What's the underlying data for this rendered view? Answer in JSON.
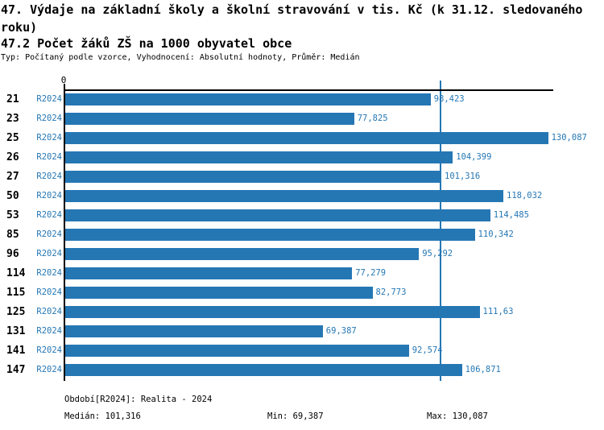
{
  "header": {
    "title_line1": "47. Výdaje na základní školy a školní stravování v tis. Kč (k 31.12. sledovaného",
    "title_line2": "roku)",
    "title_line3": "47.2 Počet žáků ZŠ na 1000 obyvatel obce",
    "subtitle": "Typ: Počítaný podle vzorce, Vyhodnocení: Absolutní hodnoty, Průměr: Medián"
  },
  "chart_data": {
    "type": "bar",
    "orientation": "horizontal",
    "title": "47. Výdaje na základní školy a školní stravování v tis. Kč (k 31.12. sledovaného roku) / 47.2 Počet žáků ZŠ na 1000 obyvatel obce",
    "xlabel": "",
    "ylabel": "",
    "axis_zero_label": "0",
    "xlim": [
      0,
      140
    ],
    "grid": false,
    "series_label": "R2024",
    "categories": [
      "21",
      "23",
      "25",
      "26",
      "27",
      "50",
      "53",
      "85",
      "96",
      "114",
      "115",
      "125",
      "131",
      "141",
      "147"
    ],
    "values": [
      98.423,
      77.825,
      130.087,
      104.399,
      101.316,
      118.032,
      114.485,
      110.342,
      95.292,
      77.279,
      82.773,
      111.63,
      69.387,
      92.574,
      106.871
    ],
    "value_labels": [
      "98,423",
      "77,825",
      "130,087",
      "104,399",
      "101,316",
      "118,032",
      "114,485",
      "110,342",
      "95,292",
      "77,279",
      "82,773",
      "111,63",
      "69,387",
      "92,574",
      "106,871"
    ],
    "median": 101.316,
    "min": 69.387,
    "max": 130.087,
    "bar_color": "#2577B4",
    "median_line_color": "#2577B4",
    "label_color": "#2577B4",
    "axis_color": "#000000"
  },
  "footer": {
    "period": "Období[R2024]: Realita - 2024",
    "median": "Medián: 101,316",
    "min": "Min: 69,387",
    "max": "Max: 130,087"
  }
}
